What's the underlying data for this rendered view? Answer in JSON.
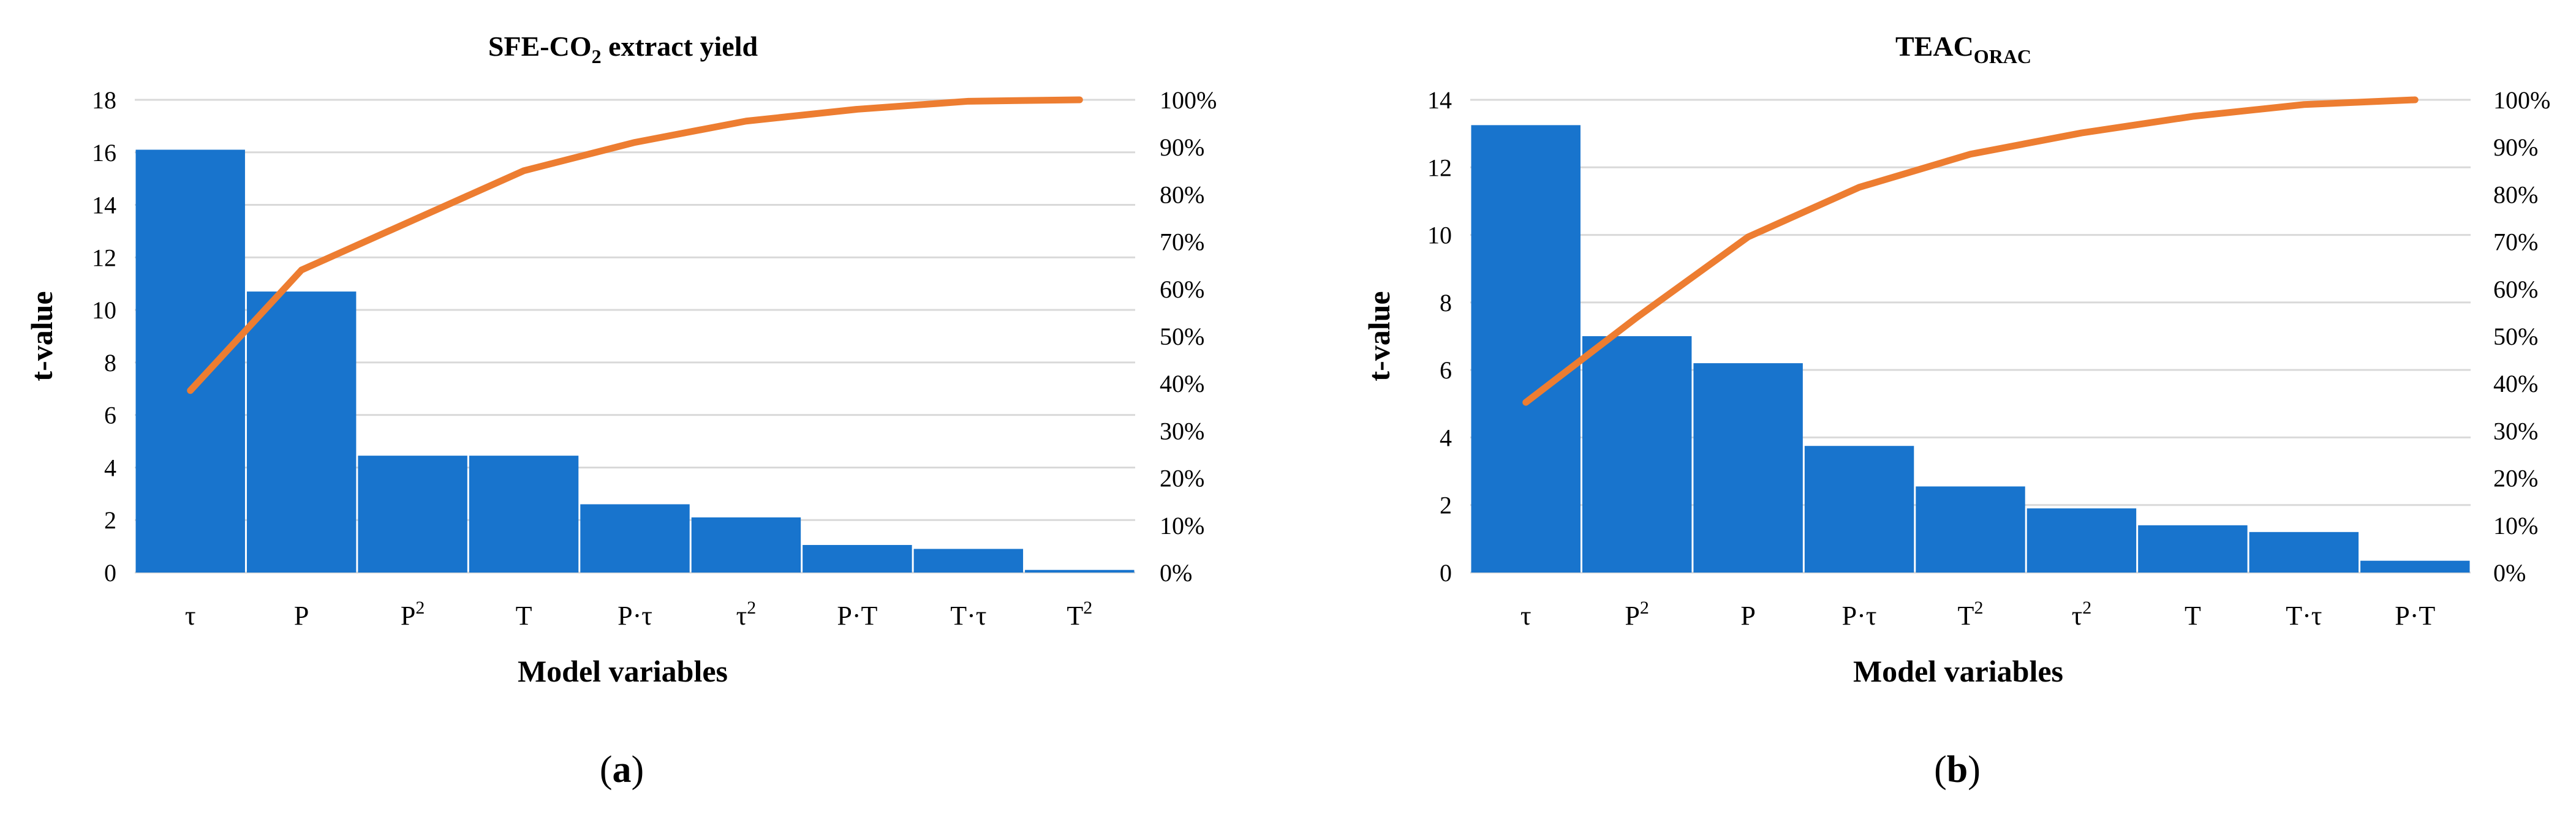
{
  "colors": {
    "bar": "#1874CD",
    "line": "#ED7D31",
    "grid": "#D9D9D9",
    "text": "#000000"
  },
  "chart_data": [
    {
      "type": "bar",
      "panel_label": "(a)",
      "title": "SFE-CO",
      "title_sub": "2",
      "title_rest": " extract yield",
      "xlabel": "Model variables",
      "ylabel": "t-value",
      "categories": [
        "τ",
        "P",
        "P²",
        "T",
        "P·τ",
        "τ²",
        "P·T",
        "T·τ",
        "T²"
      ],
      "series": [
        {
          "type": "bar",
          "values": [
            16.1,
            10.7,
            4.45,
            4.45,
            2.6,
            2.1,
            1.05,
            0.9,
            0.1
          ]
        },
        {
          "type": "line",
          "axis": "right",
          "values": [
            38.5,
            64,
            74.5,
            85,
            91,
            95.5,
            98,
            99.7,
            100
          ]
        }
      ],
      "ylim": [
        0,
        18
      ],
      "yticks": [
        "0",
        "2",
        "4",
        "6",
        "8",
        "10",
        "12",
        "14",
        "16",
        "18"
      ],
      "y2lim": [
        0,
        100
      ],
      "y2ticks": [
        "0%",
        "10%",
        "20%",
        "30%",
        "40%",
        "50%",
        "60%",
        "70%",
        "80%",
        "90%",
        "100%"
      ],
      "grid": true,
      "legend": "none"
    },
    {
      "type": "bar",
      "panel_label": "(b)",
      "title": "TEAC",
      "title_sub": "ORAC",
      "title_rest": "",
      "xlabel": "Model variables",
      "ylabel": "t-value",
      "categories": [
        "τ",
        "P²",
        "P",
        "P·τ",
        "T²",
        "τ²",
        "T",
        "T·τ",
        "P·T"
      ],
      "series": [
        {
          "type": "bar",
          "values": [
            13.25,
            7.0,
            6.2,
            3.75,
            2.55,
            1.9,
            1.4,
            1.2,
            0.35
          ]
        },
        {
          "type": "line",
          "axis": "right",
          "values": [
            36,
            54,
            71,
            81.5,
            88.5,
            93,
            96.5,
            99,
            100
          ]
        }
      ],
      "ylim": [
        0,
        14
      ],
      "yticks": [
        "0",
        "2",
        "4",
        "6",
        "8",
        "10",
        "12",
        "14"
      ],
      "y2lim": [
        0,
        100
      ],
      "y2ticks": [
        "0%",
        "10%",
        "20%",
        "30%",
        "40%",
        "50%",
        "60%",
        "70%",
        "80%",
        "90%",
        "100%"
      ],
      "grid": true,
      "legend": "none"
    }
  ]
}
